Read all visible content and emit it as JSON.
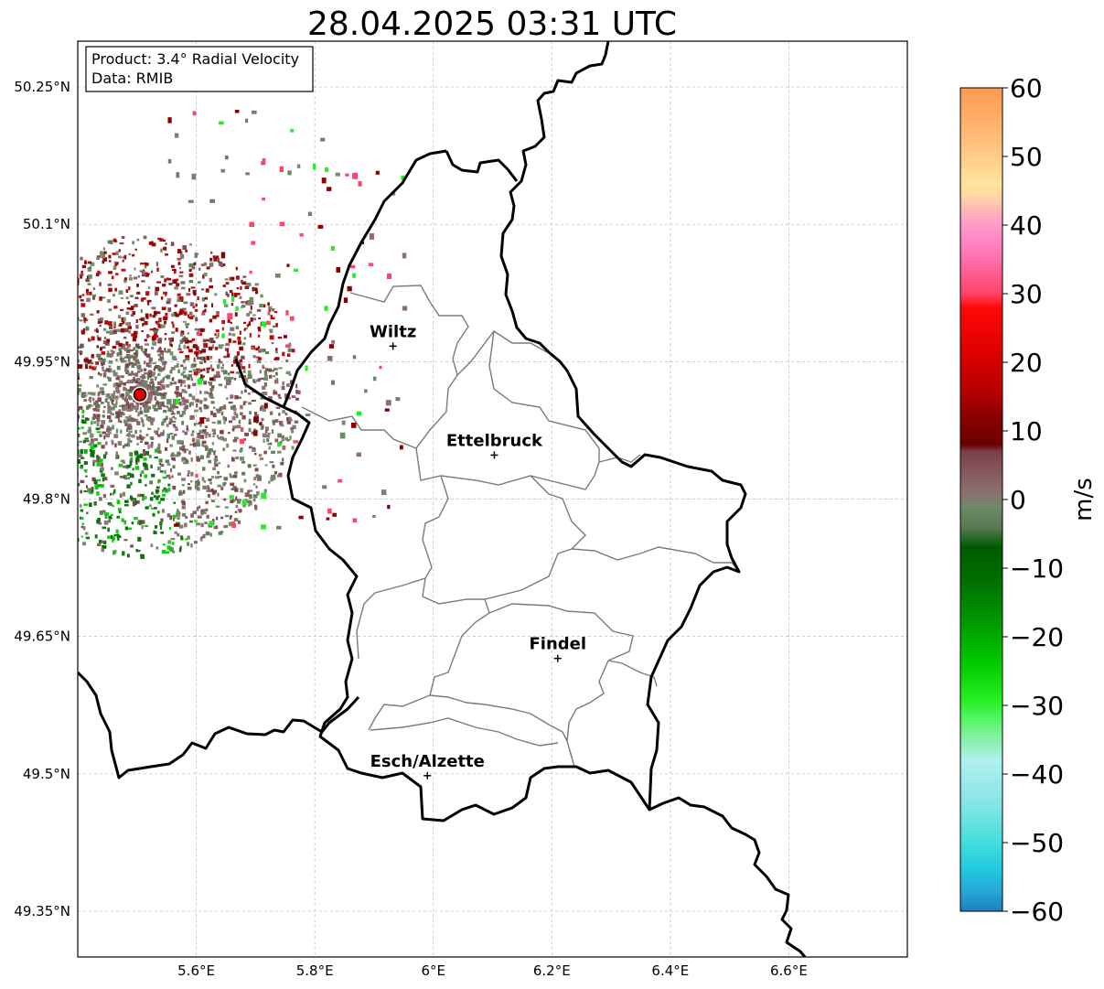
{
  "title": "28.04.2025 03:31 UTC",
  "info_box": {
    "product": "Product: 3.4° Radial Velocity",
    "source": "Data: RMIB"
  },
  "map": {
    "lon_range": [
      5.4,
      6.8
    ],
    "lat_range": [
      49.3,
      50.3
    ],
    "x_ticks": [
      {
        "value": 5.6,
        "label": "5.6°E"
      },
      {
        "value": 5.8,
        "label": "5.8°E"
      },
      {
        "value": 6.0,
        "label": "6°E"
      },
      {
        "value": 6.2,
        "label": "6.2°E"
      },
      {
        "value": 6.4,
        "label": "6.4°E"
      },
      {
        "value": 6.6,
        "label": "6.6°E"
      }
    ],
    "y_ticks": [
      {
        "value": 50.25,
        "label": "50.25°N"
      },
      {
        "value": 50.1,
        "label": "50.1°N"
      },
      {
        "value": 49.95,
        "label": "49.95°N"
      },
      {
        "value": 49.8,
        "label": "49.8°N"
      },
      {
        "value": 49.65,
        "label": "49.65°N"
      },
      {
        "value": 49.5,
        "label": "49.5°N"
      },
      {
        "value": 49.35,
        "label": "49.35°N"
      }
    ],
    "gridlines": true,
    "cities": [
      {
        "name": "Wiltz",
        "lon": 5.932,
        "lat": 49.967
      },
      {
        "name": "Ettelbruck",
        "lon": 6.103,
        "lat": 49.848
      },
      {
        "name": "Findel",
        "lon": 6.21,
        "lat": 49.626
      },
      {
        "name": "Esch/Alzette",
        "lon": 5.99,
        "lat": 49.498
      }
    ],
    "radar_site": {
      "lon": 5.505,
      "lat": 49.914,
      "color": "#e00000"
    }
  },
  "colorbar": {
    "label": "m/s",
    "min": -60,
    "max": 60,
    "ticks": [
      {
        "value": 60,
        "label": "60"
      },
      {
        "value": 50,
        "label": "50"
      },
      {
        "value": 40,
        "label": "40"
      },
      {
        "value": 30,
        "label": "30"
      },
      {
        "value": 20,
        "label": "20"
      },
      {
        "value": 10,
        "label": "10"
      },
      {
        "value": 0,
        "label": "0"
      },
      {
        "value": -10,
        "label": "−10"
      },
      {
        "value": -20,
        "label": "−20"
      },
      {
        "value": -30,
        "label": "−30"
      },
      {
        "value": -40,
        "label": "−40"
      },
      {
        "value": -50,
        "label": "−50"
      },
      {
        "value": -60,
        "label": "−60"
      }
    ],
    "color_stops": [
      {
        "value": 60,
        "color": "#ff9a52"
      },
      {
        "value": 55,
        "color": "#ffb06a"
      },
      {
        "value": 50,
        "color": "#ffcc88"
      },
      {
        "value": 46,
        "color": "#ffe49a"
      },
      {
        "value": 44,
        "color": "#ffd4a8"
      },
      {
        "value": 42,
        "color": "#ffb4b8"
      },
      {
        "value": 40,
        "color": "#ff9ac8"
      },
      {
        "value": 37,
        "color": "#ff80c0"
      },
      {
        "value": 34,
        "color": "#ff66a0"
      },
      {
        "value": 30,
        "color": "#ff4466"
      },
      {
        "value": 28,
        "color": "#ff0808"
      },
      {
        "value": 22,
        "color": "#e00000"
      },
      {
        "value": 16,
        "color": "#b80000"
      },
      {
        "value": 12,
        "color": "#8a0000"
      },
      {
        "value": 8,
        "color": "#6a0000"
      },
      {
        "value": 7,
        "color": "#7a4048"
      },
      {
        "value": 4,
        "color": "#865860"
      },
      {
        "value": 1,
        "color": "#8a7070"
      },
      {
        "value": -1,
        "color": "#6f8a6a"
      },
      {
        "value": -4,
        "color": "#5a7a54"
      },
      {
        "value": -7,
        "color": "#005a00"
      },
      {
        "value": -12,
        "color": "#007000"
      },
      {
        "value": -18,
        "color": "#009a00"
      },
      {
        "value": -24,
        "color": "#00cc00"
      },
      {
        "value": -29,
        "color": "#22ee22"
      },
      {
        "value": -32,
        "color": "#55f566"
      },
      {
        "value": -35,
        "color": "#88f0a8"
      },
      {
        "value": -38,
        "color": "#b0f0f0"
      },
      {
        "value": -44,
        "color": "#88e6e6"
      },
      {
        "value": -50,
        "color": "#44dddd"
      },
      {
        "value": -54,
        "color": "#20c8e0"
      },
      {
        "value": -57,
        "color": "#28a8d8"
      },
      {
        "value": -60,
        "color": "#1e80c0"
      }
    ]
  }
}
